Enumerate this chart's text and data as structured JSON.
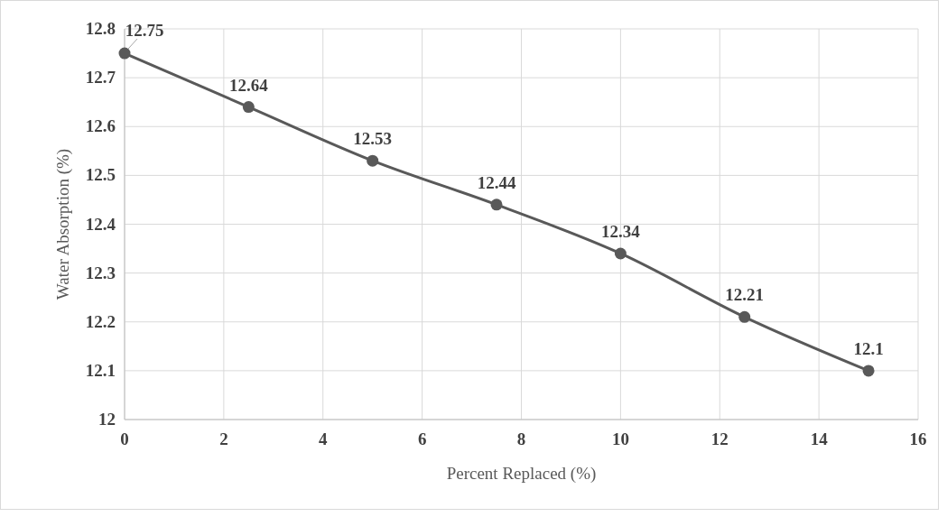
{
  "chart_data": {
    "type": "line",
    "xlabel": "Percent Replaced (%)",
    "ylabel": "Water Absorption (%)",
    "x": [
      0,
      2.5,
      5,
      7.5,
      10,
      12.5,
      15
    ],
    "series": [
      {
        "color": "#595959",
        "values": [
          12.75,
          12.64,
          12.53,
          12.44,
          12.34,
          12.21,
          12.1
        ]
      }
    ],
    "xlim": [
      0,
      16
    ],
    "xticks": [
      0,
      2,
      4,
      6,
      8,
      10,
      12,
      14,
      16
    ],
    "ylim": [
      12,
      12.8
    ],
    "yticks": [
      12,
      12.1,
      12.2,
      12.3,
      12.4,
      12.5,
      12.6,
      12.7,
      12.8
    ],
    "grid": true,
    "marker": "circle",
    "line_style": "solid",
    "data_labels": true
  }
}
